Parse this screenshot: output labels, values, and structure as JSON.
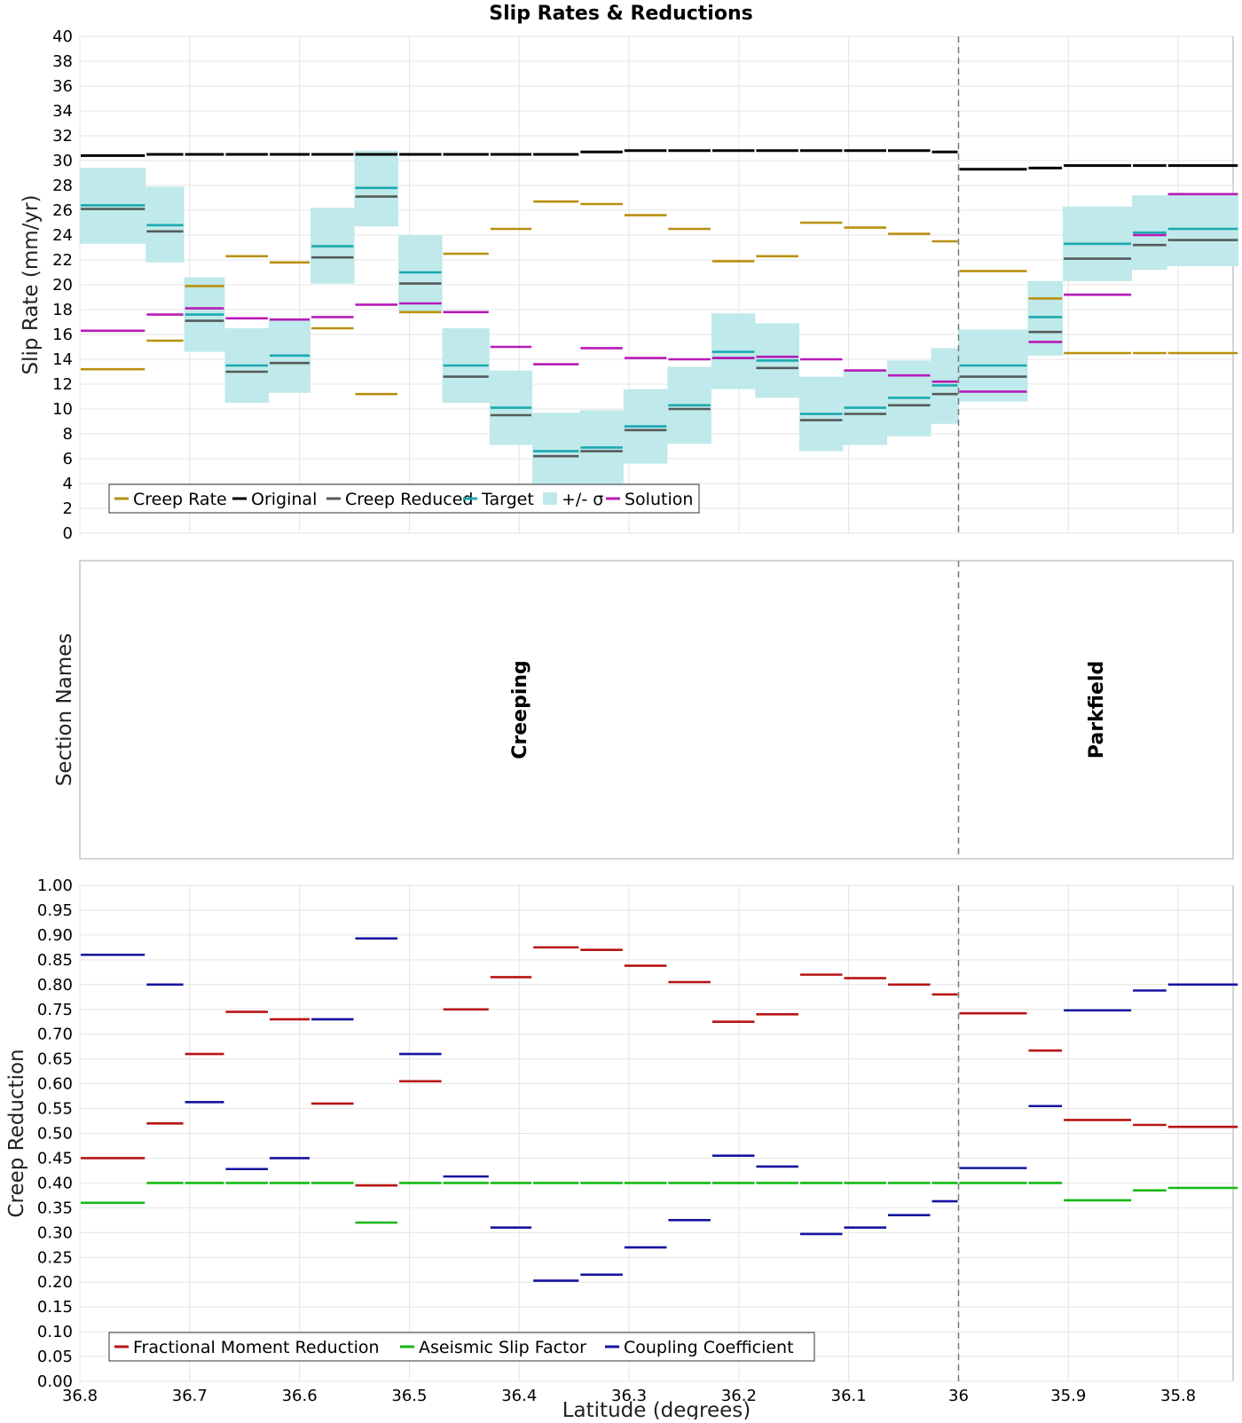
{
  "chart_data": [
    {
      "type": "step-segments",
      "title": "Slip Rates & Reductions",
      "xlabel": "Latitude (degrees)",
      "ylabel": "Slip Rate (mm/yr)",
      "xlim": [
        36.8,
        35.75
      ],
      "ylim": [
        0,
        40
      ],
      "yticks": [
        0,
        2,
        4,
        6,
        8,
        10,
        12,
        14,
        16,
        18,
        20,
        22,
        24,
        26,
        28,
        30,
        32,
        34,
        36,
        38,
        40
      ],
      "xticks": [
        {
          "value": 36.8,
          "label": "36.8"
        },
        {
          "value": 36.7,
          "label": "36.7"
        },
        {
          "value": 36.6,
          "label": "36.6"
        },
        {
          "value": 36.5,
          "label": "36.5"
        },
        {
          "value": 36.4,
          "label": "36.4"
        },
        {
          "value": 36.3,
          "label": "36.3"
        },
        {
          "value": 36.2,
          "label": "36.2"
        },
        {
          "value": 36.1,
          "label": "36.1"
        },
        {
          "value": 36.0,
          "label": "36"
        },
        {
          "value": 35.9,
          "label": "35.9"
        },
        {
          "value": 35.8,
          "label": "35.8"
        }
      ],
      "grid": true,
      "legend_position": "bottom-left",
      "section_boundaries": [
        [
          36.8,
          36.74
        ],
        [
          36.74,
          36.705
        ],
        [
          36.705,
          36.668
        ],
        [
          36.668,
          36.628
        ],
        [
          36.628,
          36.59
        ],
        [
          36.59,
          36.55
        ],
        [
          36.55,
          36.51
        ],
        [
          36.51,
          36.47
        ],
        [
          36.47,
          36.427
        ],
        [
          36.427,
          36.388
        ],
        [
          36.388,
          36.345
        ],
        [
          36.345,
          36.305
        ],
        [
          36.305,
          36.265
        ],
        [
          36.265,
          36.225
        ],
        [
          36.225,
          36.185
        ],
        [
          36.185,
          36.145
        ],
        [
          36.145,
          36.105
        ],
        [
          36.105,
          36.065
        ],
        [
          36.065,
          36.025
        ],
        [
          36.025,
          36.0
        ],
        [
          36.0,
          35.937
        ],
        [
          35.937,
          35.905
        ],
        [
          35.905,
          35.842
        ],
        [
          35.842,
          35.81
        ],
        [
          35.81,
          35.745
        ]
      ],
      "series": [
        {
          "name": "Creep Rate",
          "color": "#b8900f",
          "values": [
            13.2,
            15.5,
            19.9,
            22.3,
            21.8,
            16.5,
            11.2,
            17.8,
            22.5,
            24.5,
            26.7,
            26.5,
            25.6,
            24.5,
            21.9,
            22.3,
            25.0,
            24.6,
            24.1,
            23.5,
            21.1,
            18.9,
            14.5,
            14.5,
            14.5
          ]
        },
        {
          "name": "Original",
          "color": "#000000",
          "values": [
            30.4,
            30.5,
            30.5,
            30.5,
            30.5,
            30.5,
            30.5,
            30.5,
            30.5,
            30.5,
            30.5,
            30.7,
            30.8,
            30.8,
            30.8,
            30.8,
            30.8,
            30.8,
            30.8,
            30.7,
            29.3,
            29.4,
            29.6,
            29.6,
            29.6
          ]
        },
        {
          "name": "Creep Reduced",
          "color": "#555a5a",
          "values": [
            26.1,
            24.3,
            17.1,
            13.0,
            13.7,
            22.2,
            27.1,
            20.1,
            12.6,
            9.5,
            6.2,
            6.6,
            8.3,
            10.0,
            14.1,
            13.3,
            9.1,
            9.6,
            10.3,
            11.2,
            12.6,
            16.2,
            22.1,
            23.2,
            23.6
          ]
        },
        {
          "name": "Target",
          "color": "#1aa9b0",
          "values": [
            26.4,
            24.8,
            17.6,
            13.5,
            14.3,
            23.1,
            27.8,
            21.0,
            13.5,
            10.1,
            6.6,
            6.9,
            8.6,
            10.3,
            14.6,
            13.9,
            9.6,
            10.1,
            10.9,
            11.9,
            13.5,
            17.4,
            23.3,
            24.2,
            24.5
          ]
        },
        {
          "name": "+/- σ",
          "color": "#bfe9ea",
          "lower": [
            23.3,
            21.8,
            14.6,
            10.5,
            11.3,
            20.1,
            24.7,
            17.9,
            10.5,
            7.1,
            3.6,
            3.8,
            5.6,
            7.2,
            11.6,
            10.9,
            6.6,
            7.1,
            7.8,
            8.8,
            10.6,
            14.3,
            20.3,
            21.2,
            21.5
          ],
          "upper": [
            29.4,
            27.9,
            20.6,
            16.5,
            17.3,
            26.2,
            30.8,
            24.0,
            16.5,
            13.1,
            9.7,
            9.9,
            11.6,
            13.4,
            17.7,
            16.9,
            12.6,
            13.1,
            13.9,
            14.9,
            16.4,
            20.3,
            26.3,
            27.2,
            27.4
          ]
        },
        {
          "name": "Solution",
          "color": "#b81ab8",
          "values": [
            16.3,
            17.6,
            18.1,
            17.3,
            17.2,
            17.4,
            18.4,
            18.5,
            17.8,
            15.0,
            13.6,
            14.9,
            14.1,
            14.0,
            14.1,
            14.2,
            14.0,
            13.1,
            12.7,
            12.2,
            11.4,
            15.4,
            19.2,
            24.0,
            27.3
          ]
        }
      ],
      "annotations": [
        {
          "type": "vline",
          "x": 36.0,
          "style": "dashed"
        }
      ]
    },
    {
      "type": "labels",
      "ylabel": "Section Names",
      "xlim": [
        36.8,
        35.75
      ],
      "sections": [
        {
          "name": "Creeping",
          "x": 36.4
        },
        {
          "name": "Parkfield",
          "x": 35.875
        }
      ],
      "annotations": [
        {
          "type": "vline",
          "x": 36.0,
          "style": "dashed"
        }
      ]
    },
    {
      "type": "step-segments",
      "xlabel": "Latitude (degrees)",
      "ylabel": "Creep Reduction",
      "xlim": [
        36.8,
        35.75
      ],
      "ylim": [
        0,
        1
      ],
      "yticks": [
        0,
        0.05,
        0.1,
        0.15,
        0.2,
        0.25,
        0.3,
        0.35,
        0.4,
        0.45,
        0.5,
        0.55,
        0.6,
        0.65,
        0.7,
        0.75,
        0.8,
        0.85,
        0.9,
        0.95,
        1.0
      ],
      "ytick_labels": [
        "0.00",
        "0.05",
        "0.10",
        "0.15",
        "0.20",
        "0.25",
        "0.30",
        "0.35",
        "0.40",
        "0.45",
        "0.50",
        "0.55",
        "0.60",
        "0.65",
        "0.70",
        "0.75",
        "0.80",
        "0.85",
        "0.90",
        "0.95",
        "1.00"
      ],
      "xticks": [
        {
          "value": 36.8,
          "label": "36.8"
        },
        {
          "value": 36.7,
          "label": "36.7"
        },
        {
          "value": 36.6,
          "label": "36.6"
        },
        {
          "value": 36.5,
          "label": "36.5"
        },
        {
          "value": 36.4,
          "label": "36.4"
        },
        {
          "value": 36.3,
          "label": "36.3"
        },
        {
          "value": 36.2,
          "label": "36.2"
        },
        {
          "value": 36.1,
          "label": "36.1"
        },
        {
          "value": 36.0,
          "label": "36"
        },
        {
          "value": 35.9,
          "label": "35.9"
        },
        {
          "value": 35.8,
          "label": "35.8"
        }
      ],
      "grid": true,
      "legend_position": "bottom-left",
      "series": [
        {
          "name": "Fractional Moment Reduction",
          "color": "#b81414",
          "values": [
            0.45,
            0.52,
            0.66,
            0.745,
            0.73,
            0.56,
            0.395,
            0.605,
            0.75,
            0.815,
            0.875,
            0.87,
            0.838,
            0.805,
            0.725,
            0.74,
            0.82,
            0.813,
            0.8,
            0.78,
            0.742,
            0.667,
            0.527,
            0.517,
            0.513
          ]
        },
        {
          "name": "Aseismic Slip Factor",
          "color": "#14b814",
          "values": [
            0.36,
            0.4,
            0.4,
            0.4,
            0.4,
            0.4,
            0.32,
            0.4,
            0.4,
            0.4,
            0.4,
            0.4,
            0.4,
            0.4,
            0.4,
            0.4,
            0.4,
            0.4,
            0.4,
            0.4,
            0.4,
            0.4,
            0.365,
            0.385,
            0.39
          ]
        },
        {
          "name": "Coupling Coefficient",
          "color": "#1414a0",
          "values": [
            0.86,
            0.8,
            0.563,
            0.428,
            0.45,
            0.73,
            0.893,
            0.66,
            0.413,
            0.31,
            0.203,
            0.215,
            0.27,
            0.325,
            0.455,
            0.433,
            0.297,
            0.31,
            0.335,
            0.363,
            0.43,
            0.555,
            0.748,
            0.788,
            0.8
          ]
        }
      ],
      "annotations": [
        {
          "type": "vline",
          "x": 36.0,
          "style": "dashed"
        }
      ]
    }
  ]
}
